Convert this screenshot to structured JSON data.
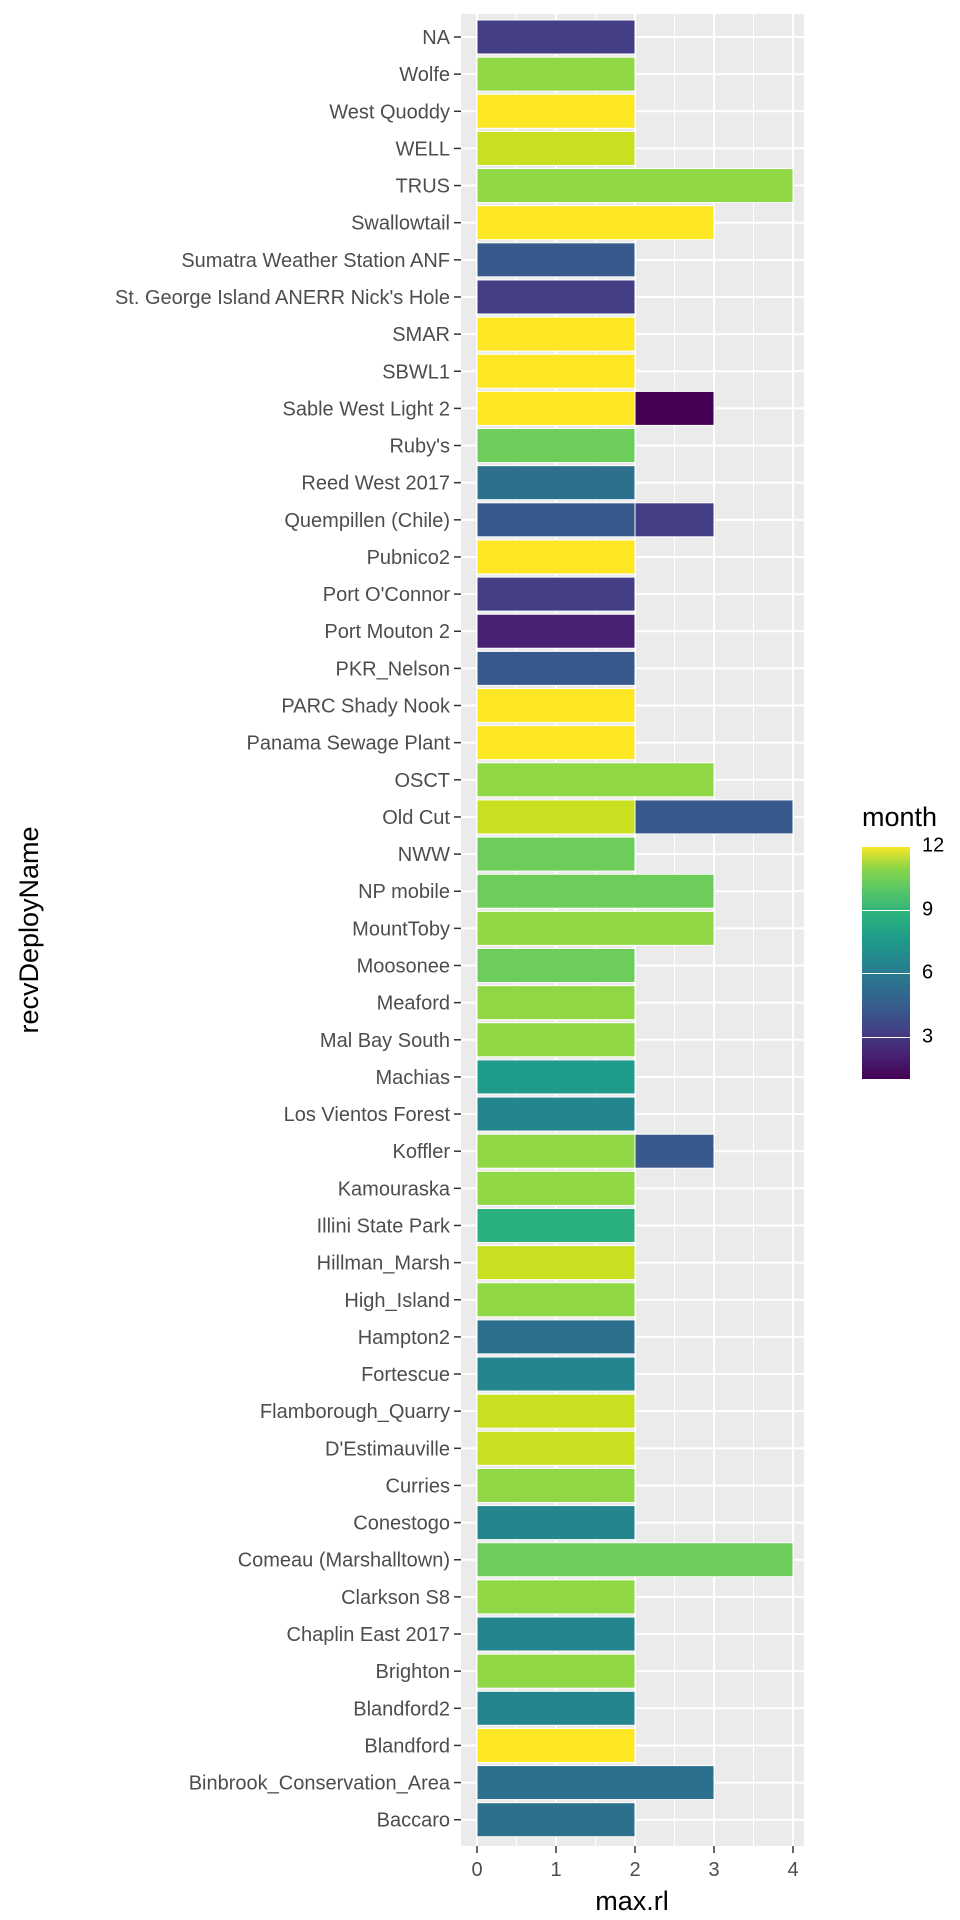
{
  "chart_data": {
    "type": "bar",
    "orientation": "horizontal",
    "stacked": true,
    "xlabel": "max.rl",
    "ylabel": "recvDeployName",
    "xlim": [
      0,
      4
    ],
    "xticks": [
      "0",
      "1",
      "2",
      "3",
      "4"
    ],
    "legend": {
      "title": "month",
      "placement": "right",
      "ticks": [
        "12",
        "9",
        "6",
        "3"
      ],
      "range": [
        1,
        12
      ]
    },
    "categories": [
      "NA",
      "Wolfe",
      "West Quoddy",
      "WELL",
      "TRUS",
      "Swallowtail",
      "Sumatra Weather Station ANF",
      "St. George Island ANERR Nick's Hole",
      "SMAR",
      "SBWL1",
      "Sable West Light 2",
      "Ruby's",
      "Reed West 2017",
      "Quempillen (Chile)",
      "Pubnico2",
      "Port O'Connor",
      "Port Mouton 2",
      "PKR_Nelson",
      "PARC Shady Nook",
      "Panama Sewage Plant",
      "OSCT",
      "Old Cut",
      "NWW",
      "NP mobile",
      "MountToby",
      "Moosonee",
      "Meaford",
      "Mal Bay South ",
      "Machias",
      "Los Vientos Forest",
      "Koffler",
      "Kamouraska",
      "Illini State Park ",
      "Hillman_Marsh",
      "High_Island",
      "Hampton2",
      "Fortescue",
      "Flamborough_Quarry",
      "D'Estimauville",
      "Curries",
      "Conestogo",
      "Comeau (Marshalltown)",
      "Clarkson S8",
      "Chaplin East 2017",
      "Brighton",
      "Blandford2",
      "Blandford",
      "Binbrook_Conservation_Area",
      "Baccaro"
    ],
    "bars": [
      {
        "category": "NA",
        "segments": [
          {
            "month": 3,
            "from": 0,
            "to": 2
          }
        ]
      },
      {
        "category": "Wolfe",
        "segments": [
          {
            "month": 10,
            "from": 0,
            "to": 2
          }
        ]
      },
      {
        "category": "West Quoddy",
        "segments": [
          {
            "month": 12,
            "from": 0,
            "to": 2
          }
        ]
      },
      {
        "category": "WELL",
        "segments": [
          {
            "month": 11,
            "from": 0,
            "to": 2
          }
        ]
      },
      {
        "category": "TRUS",
        "segments": [
          {
            "month": 10,
            "from": 0,
            "to": 4
          }
        ]
      },
      {
        "category": "Swallowtail",
        "segments": [
          {
            "month": 12,
            "from": 0,
            "to": 3
          }
        ]
      },
      {
        "category": "Sumatra Weather Station ANF",
        "segments": [
          {
            "month": 4,
            "from": 0,
            "to": 2
          }
        ]
      },
      {
        "category": "St. George Island ANERR Nick's Hole",
        "segments": [
          {
            "month": 3,
            "from": 0,
            "to": 2
          }
        ]
      },
      {
        "category": "SMAR",
        "segments": [
          {
            "month": 12,
            "from": 0,
            "to": 2
          }
        ]
      },
      {
        "category": "SBWL1",
        "segments": [
          {
            "month": 12,
            "from": 0,
            "to": 2
          }
        ]
      },
      {
        "category": "Sable West Light 2",
        "segments": [
          {
            "month": 12,
            "from": 0,
            "to": 2
          },
          {
            "month": 1,
            "from": 2,
            "to": 3
          }
        ]
      },
      {
        "category": "Ruby's",
        "segments": [
          {
            "month": 9,
            "from": 0,
            "to": 2
          }
        ]
      },
      {
        "category": "Reed West 2017",
        "segments": [
          {
            "month": 5,
            "from": 0,
            "to": 2
          }
        ]
      },
      {
        "category": "Quempillen (Chile)",
        "segments": [
          {
            "month": 4,
            "from": 0,
            "to": 2
          },
          {
            "month": 3,
            "from": 2,
            "to": 3
          }
        ]
      },
      {
        "category": "Pubnico2",
        "segments": [
          {
            "month": 12,
            "from": 0,
            "to": 2
          }
        ]
      },
      {
        "category": "Port O'Connor",
        "segments": [
          {
            "month": 3,
            "from": 0,
            "to": 2
          }
        ]
      },
      {
        "category": "Port Mouton 2",
        "segments": [
          {
            "month": 2,
            "from": 0,
            "to": 2
          }
        ]
      },
      {
        "category": "PKR_Nelson",
        "segments": [
          {
            "month": 4,
            "from": 0,
            "to": 2
          }
        ]
      },
      {
        "category": "PARC Shady Nook",
        "segments": [
          {
            "month": 12,
            "from": 0,
            "to": 2
          }
        ]
      },
      {
        "category": "Panama Sewage Plant",
        "segments": [
          {
            "month": 12,
            "from": 0,
            "to": 2
          }
        ]
      },
      {
        "category": "OSCT",
        "segments": [
          {
            "month": 10,
            "from": 0,
            "to": 3
          }
        ]
      },
      {
        "category": "Old Cut",
        "segments": [
          {
            "month": 11,
            "from": 0,
            "to": 2
          },
          {
            "month": 4,
            "from": 2,
            "to": 4
          }
        ]
      },
      {
        "category": "NWW",
        "segments": [
          {
            "month": 9,
            "from": 0,
            "to": 2
          }
        ]
      },
      {
        "category": "NP mobile",
        "segments": [
          {
            "month": 9,
            "from": 0,
            "to": 3
          }
        ]
      },
      {
        "category": "MountToby",
        "segments": [
          {
            "month": 10,
            "from": 0,
            "to": 3
          }
        ]
      },
      {
        "category": "Moosonee",
        "segments": [
          {
            "month": 9,
            "from": 0,
            "to": 2
          }
        ]
      },
      {
        "category": "Meaford",
        "segments": [
          {
            "month": 10,
            "from": 0,
            "to": 2
          }
        ]
      },
      {
        "category": "Mal Bay South ",
        "segments": [
          {
            "month": 10,
            "from": 0,
            "to": 2
          }
        ]
      },
      {
        "category": "Machias",
        "segments": [
          {
            "month": 7,
            "from": 0,
            "to": 2
          }
        ]
      },
      {
        "category": "Los Vientos Forest",
        "segments": [
          {
            "month": 6,
            "from": 0,
            "to": 2
          }
        ]
      },
      {
        "category": "Koffler",
        "segments": [
          {
            "month": 10,
            "from": 0,
            "to": 2
          },
          {
            "month": 4,
            "from": 2,
            "to": 3
          }
        ]
      },
      {
        "category": "Kamouraska",
        "segments": [
          {
            "month": 10,
            "from": 0,
            "to": 2
          }
        ]
      },
      {
        "category": "Illini State Park ",
        "segments": [
          {
            "month": 8,
            "from": 0,
            "to": 2
          }
        ]
      },
      {
        "category": "Hillman_Marsh",
        "segments": [
          {
            "month": 11,
            "from": 0,
            "to": 2
          }
        ]
      },
      {
        "category": "High_Island",
        "segments": [
          {
            "month": 10,
            "from": 0,
            "to": 2
          }
        ]
      },
      {
        "category": "Hampton2",
        "segments": [
          {
            "month": 5,
            "from": 0,
            "to": 2
          }
        ]
      },
      {
        "category": "Fortescue",
        "segments": [
          {
            "month": 6,
            "from": 0,
            "to": 2
          }
        ]
      },
      {
        "category": "Flamborough_Quarry",
        "segments": [
          {
            "month": 11,
            "from": 0,
            "to": 2
          }
        ]
      },
      {
        "category": "D'Estimauville",
        "segments": [
          {
            "month": 11,
            "from": 0,
            "to": 2
          }
        ]
      },
      {
        "category": "Curries",
        "segments": [
          {
            "month": 10,
            "from": 0,
            "to": 2
          }
        ]
      },
      {
        "category": "Conestogo",
        "segments": [
          {
            "month": 6,
            "from": 0,
            "to": 2
          }
        ]
      },
      {
        "category": "Comeau (Marshalltown)",
        "segments": [
          {
            "month": 9,
            "from": 0,
            "to": 4
          }
        ]
      },
      {
        "category": "Clarkson S8",
        "segments": [
          {
            "month": 10,
            "from": 0,
            "to": 2
          }
        ]
      },
      {
        "category": "Chaplin East 2017",
        "segments": [
          {
            "month": 6,
            "from": 0,
            "to": 2
          }
        ]
      },
      {
        "category": "Brighton",
        "segments": [
          {
            "month": 10,
            "from": 0,
            "to": 2
          }
        ]
      },
      {
        "category": "Blandford2",
        "segments": [
          {
            "month": 6,
            "from": 0,
            "to": 2
          }
        ]
      },
      {
        "category": "Blandford",
        "segments": [
          {
            "month": 12,
            "from": 0,
            "to": 2
          }
        ]
      },
      {
        "category": "Binbrook_Conservation_Area",
        "segments": [
          {
            "month": 5,
            "from": 0,
            "to": 3
          }
        ]
      },
      {
        "category": "Baccaro",
        "segments": [
          {
            "month": 5,
            "from": 0,
            "to": 2
          }
        ]
      }
    ],
    "month_colors": {
      "1": "#440154",
      "2": "#482173",
      "3": "#433e85",
      "4": "#38598c",
      "5": "#2d708e",
      "6": "#25858e",
      "7": "#1e9b8a",
      "8": "#2ab07f",
      "9": "#6ccd5a",
      "10": "#8fd744",
      "11": "#c8e020",
      "12": "#fde725"
    },
    "panel_background": "#ebebeb",
    "grid": true
  }
}
